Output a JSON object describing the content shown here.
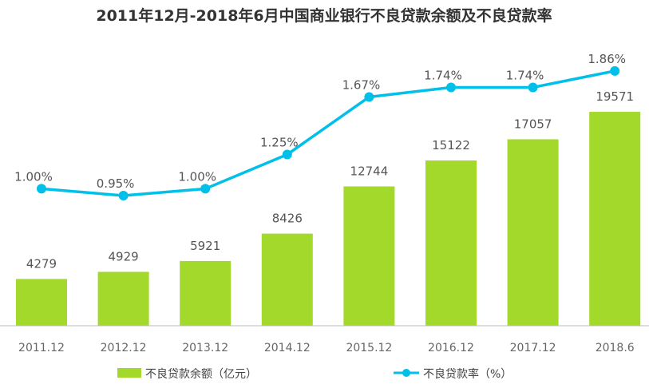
{
  "chart_data": {
    "type": "bar+line",
    "title": "2011年12月-2018年6月中国商业银行不良贷款余额及不良贷款率",
    "categories": [
      "2011.12",
      "2012.12",
      "2013.12",
      "2014.12",
      "2015.12",
      "2016.12",
      "2017.12",
      "2018.6"
    ],
    "series": [
      {
        "name": "不良贷款余额（亿元）",
        "type": "bar",
        "values": [
          4279,
          4929,
          5921,
          8426,
          12744,
          15122,
          17057,
          19571
        ],
        "labels": [
          "4279",
          "4929",
          "5921",
          "8426",
          "12744",
          "15122",
          "17057",
          "19571"
        ],
        "color": "#a3d92a",
        "ylim": [
          0,
          29800
        ]
      },
      {
        "name": "不良贷款率（%）",
        "type": "line",
        "values": [
          1.0,
          0.95,
          1.0,
          1.25,
          1.67,
          1.74,
          1.74,
          1.86
        ],
        "labels": [
          "1.00%",
          "0.95%",
          "1.00%",
          "1.25%",
          "1.67%",
          "1.74%",
          "1.74%",
          "1.86%"
        ],
        "color": "#00bfe8",
        "ylim": [
          0,
          2.378
        ]
      }
    ],
    "xlabel": "",
    "ylabel": "",
    "grid": false,
    "legend": "bottom"
  }
}
